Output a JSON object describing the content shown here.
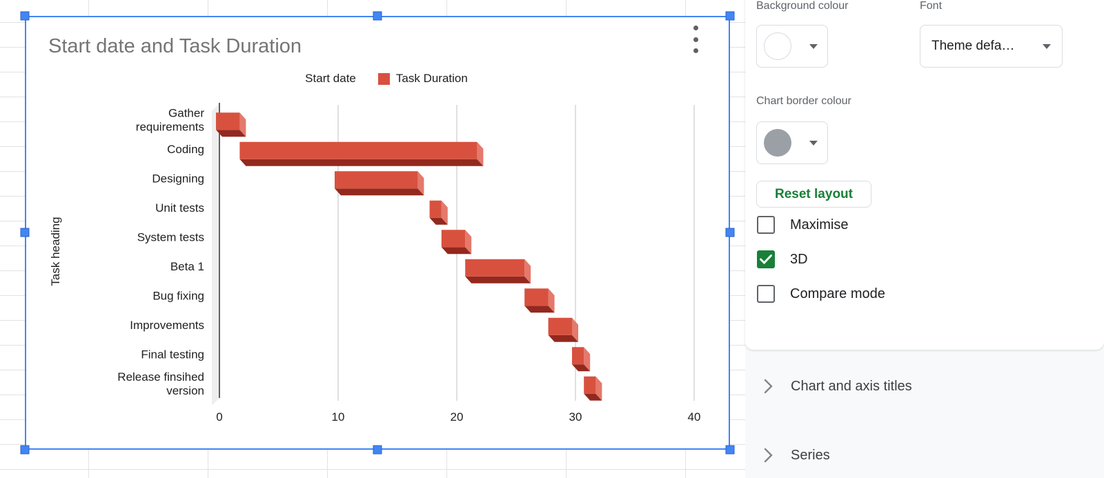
{
  "chart_data": {
    "type": "bar",
    "orientation": "horizontal",
    "is_3d": true,
    "title": "Start date and Task Duration",
    "categories": [
      "Gather requirements",
      "Coding",
      "Designing",
      "Unit tests",
      "System tests",
      "Beta 1",
      "Bug fixing",
      "Improvements",
      "Final testing",
      "Release finsihed version"
    ],
    "series": [
      {
        "name": "Start date",
        "values": [
          0,
          2,
          10,
          18,
          19,
          21,
          26,
          28,
          30,
          31
        ],
        "color": "#ffffff"
      },
      {
        "name": "Task Duration",
        "values": [
          2,
          20,
          7,
          1,
          2,
          5,
          2,
          2,
          1,
          1
        ],
        "color": "#d8513f"
      }
    ],
    "xlabel": "",
    "ylabel": "Task heading",
    "xlim": [
      0,
      40
    ],
    "xticks": [
      0,
      10,
      20,
      30,
      40
    ],
    "legend_position": "top",
    "grid": "vertical",
    "bar_colors": {
      "front": "#d8513f",
      "side": "#e4796c",
      "bottom": "#93291e"
    }
  },
  "panel": {
    "background_colour_label": "Background colour",
    "font_label": "Font",
    "font_value": "Theme defa…",
    "chart_border_colour_label": "Chart border colour",
    "reset_button": "Reset layout",
    "checkboxes": [
      {
        "label": "Maximise",
        "checked": false
      },
      {
        "label": "3D",
        "checked": true
      },
      {
        "label": "Compare mode",
        "checked": false
      }
    ],
    "sections": [
      {
        "label": "Chart and axis titles"
      },
      {
        "label": "Series"
      }
    ],
    "colors": {
      "background_swatch": "#ffffff",
      "border_swatch": "#9aa0a6",
      "reset_green": "#188038",
      "checkbox_checked": "#188038"
    }
  }
}
